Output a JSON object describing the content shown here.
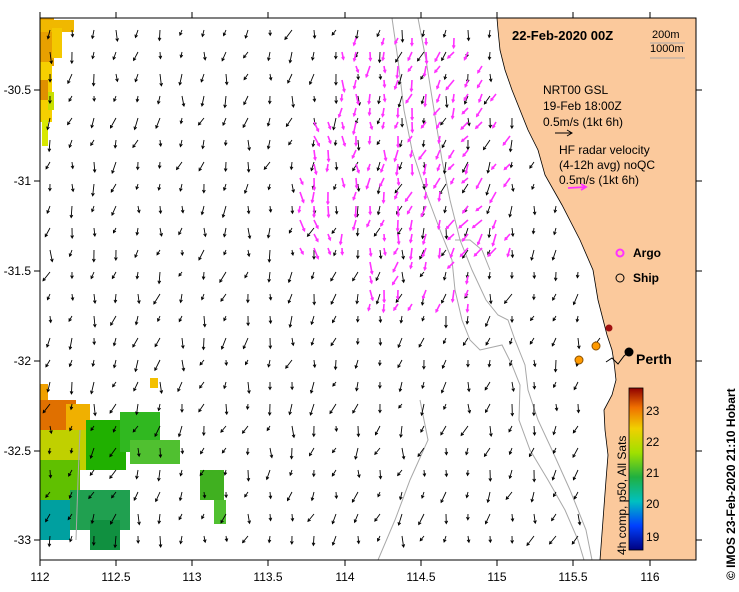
{
  "date_title": "22-Feb-2020 00Z",
  "depth_legend": [
    "200m",
    "1000m"
  ],
  "model": {
    "name": "NRT00 GSL",
    "time": "19-Feb 18:00Z",
    "scale": "0.5m/s (1kt 6h)"
  },
  "radar": {
    "line1": "HF radar velocity",
    "line2": "(4-12h avg) noQC",
    "scale": "0.5m/s (1kt 6h)"
  },
  "markers": {
    "argo_label": "Argo",
    "ship_label": "Ship",
    "city_label": "Perth"
  },
  "colorbar": {
    "label": "4h comp, p50, All Sats",
    "ticks": [
      "23",
      "22",
      "21",
      "20",
      "19"
    ]
  },
  "credit": "© IMOS 23-Feb-2020 21:10 Hobart",
  "axes": {
    "x_ticks": [
      "112",
      "112.5",
      "113",
      "113.5",
      "114",
      "114.5",
      "115",
      "115.5",
      "116"
    ],
    "y_ticks": [
      "-30.5",
      "-31",
      "-31.5",
      "-32",
      "-32.5",
      "-33"
    ]
  },
  "colors": {
    "land": "#fbc99c",
    "radar": "#ff33ff",
    "argo": "#ff33ff",
    "ship": "#ff9a00",
    "mooring": "#a01010",
    "city": "#000000",
    "bathymetry": "#a8a8a8"
  }
}
